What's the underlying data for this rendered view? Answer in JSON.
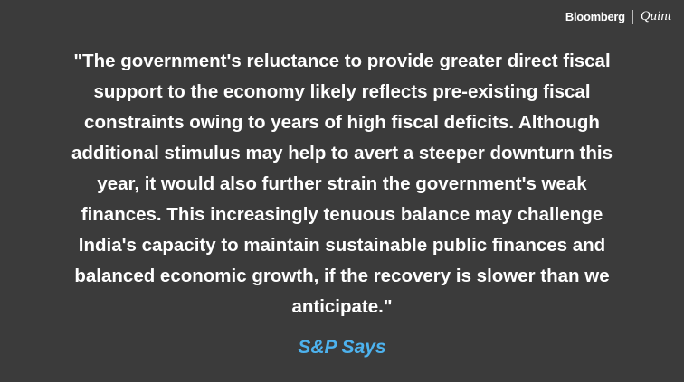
{
  "logo": {
    "brand": "Bloomberg",
    "sub": "Quint"
  },
  "quote": {
    "lines": [
      "\"The government's reluctance to provide greater direct fiscal",
      "support to the economy likely reflects pre-existing fiscal",
      "constraints owing to years of high fiscal deficits. Although",
      "additional stimulus may help to avert a steeper downturn this",
      "year, it would also further strain the government's weak",
      "finances. This increasingly tenuous balance may challenge",
      "India's capacity to maintain sustainable public finances and",
      "balanced economic growth, if the recovery is slower than we",
      "anticipate.\""
    ]
  },
  "attribution": "S&P Says"
}
